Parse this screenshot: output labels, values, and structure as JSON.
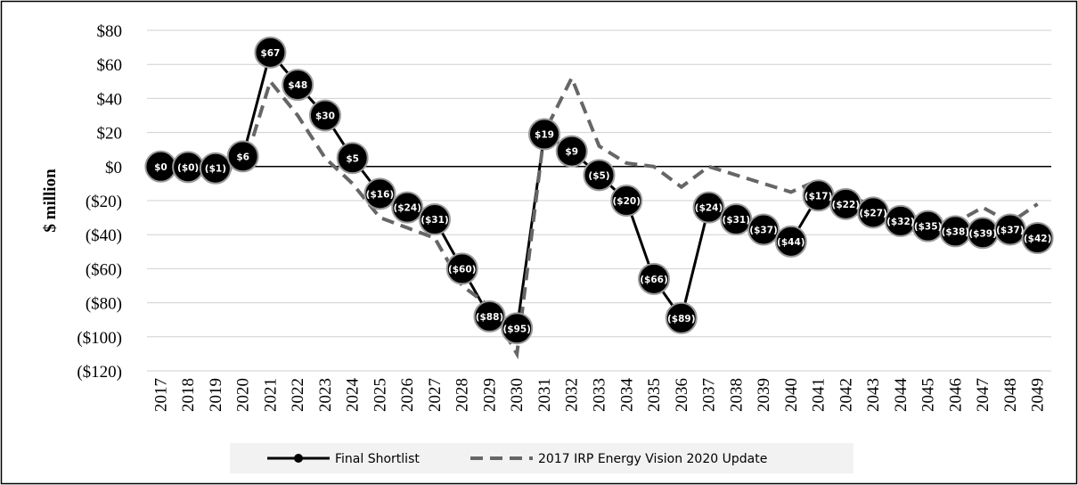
{
  "chart_data": {
    "type": "line",
    "y_label": "$ million",
    "categories": [
      "2017",
      "2018",
      "2019",
      "2020",
      "2021",
      "2022",
      "2023",
      "2024",
      "2025",
      "2026",
      "2027",
      "2028",
      "2029",
      "2030",
      "2031",
      "2032",
      "2033",
      "2034",
      "2035",
      "2036",
      "2037",
      "2038",
      "2039",
      "2040",
      "2041",
      "2042",
      "2043",
      "2044",
      "2045",
      "2046",
      "2047",
      "2048",
      "2049"
    ],
    "series": [
      {
        "name": "Final Shortlist",
        "color": "#000000",
        "markers": true,
        "values": [
          0,
          -0.3,
          -1,
          6,
          67,
          48,
          30,
          5,
          -16,
          -24,
          -31,
          -60,
          -88,
          -95,
          19,
          9,
          -5,
          -20,
          -66,
          -89,
          -24,
          -31,
          -37,
          -44,
          -17,
          -22,
          -27,
          -32,
          -35,
          -38,
          -39,
          -37,
          -42
        ],
        "value_labels": [
          "$0",
          "($0)",
          "($1)",
          "$6",
          "$67",
          "$48",
          "$30",
          "$5",
          "($16)",
          "($24)",
          "($31)",
          "($60)",
          "($88)",
          "($95)",
          "$19",
          "$9",
          "($5)",
          "($20)",
          "($66)",
          "($89)",
          "($24)",
          "($31)",
          "($37)",
          "($44)",
          "($17)",
          "($22)",
          "($27)",
          "($32)",
          "($35)",
          "($38)",
          "($39)",
          "($37)",
          "($42)"
        ]
      },
      {
        "name": "2017 IRP Energy Vision 2020 Update",
        "color": "#666666",
        "dashed": true,
        "values": [
          0,
          0,
          -1,
          -2,
          50,
          30,
          5,
          -10,
          -30,
          -36,
          -42,
          -70,
          -82,
          -110,
          20,
          52,
          12,
          2,
          0,
          -12,
          0,
          -5,
          -10,
          -15,
          -8,
          -18,
          -22,
          -27,
          -32,
          -33,
          -24,
          -33,
          -22
        ]
      }
    ],
    "ylim": [
      -120,
      80
    ],
    "yticks": [
      {
        "value": -120,
        "label": "($120)"
      },
      {
        "value": -100,
        "label": "($100)"
      },
      {
        "value": -80,
        "label": "($80)"
      },
      {
        "value": -60,
        "label": "($60)"
      },
      {
        "value": -40,
        "label": "($40)"
      },
      {
        "value": -20,
        "label": "($20)"
      },
      {
        "value": 0,
        "label": "$0"
      },
      {
        "value": 20,
        "label": "$20"
      },
      {
        "value": 40,
        "label": "$40"
      },
      {
        "value": 60,
        "label": "$60"
      },
      {
        "value": 80,
        "label": "$80"
      }
    ],
    "grid": true,
    "legend": "bottom"
  }
}
